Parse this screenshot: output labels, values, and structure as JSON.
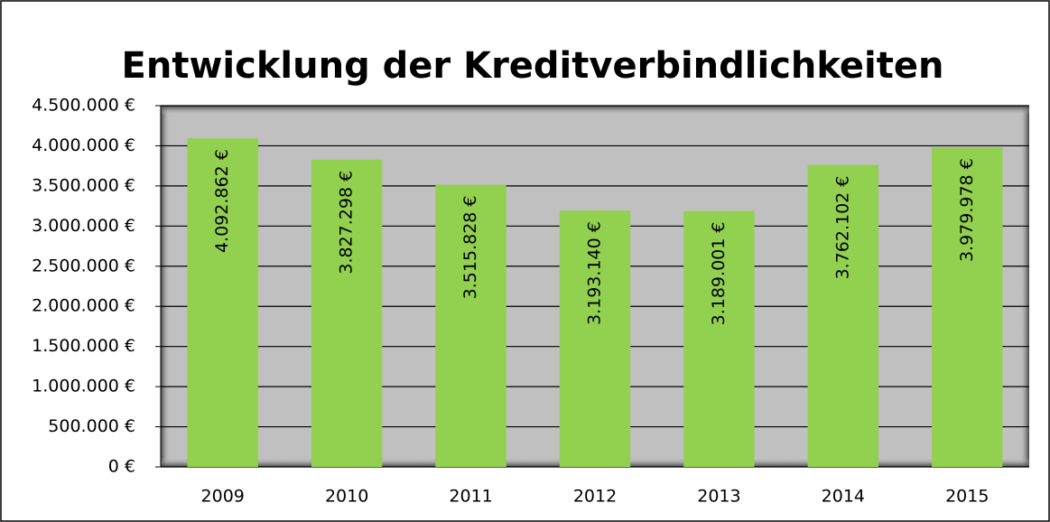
{
  "chart_data": {
    "type": "bar",
    "title": "Entwicklung der Kreditverbindlichkeiten",
    "categories": [
      "2009",
      "2010",
      "2011",
      "2012",
      "2013",
      "2014",
      "2015"
    ],
    "values": [
      4092862,
      3827298,
      3515828,
      3193140,
      3189001,
      3762102,
      3979978
    ],
    "value_labels": [
      "4.092.862 €",
      "3.827.298 €",
      "3.515.828 €",
      "3.193.140 €",
      "3.189.001 €",
      "3.762.102 €",
      "3.979.978 €"
    ],
    "color": "#92d050",
    "ylim": [
      0,
      4500000
    ],
    "yticks": [
      {
        "value": 0,
        "label": "0 €"
      },
      {
        "value": 500000,
        "label": "500.000 €"
      },
      {
        "value": 1000000,
        "label": "1.000.000 €"
      },
      {
        "value": 1500000,
        "label": "1.500.000 €"
      },
      {
        "value": 2000000,
        "label": "2.000.000 €"
      },
      {
        "value": 2500000,
        "label": "2.500.000 €"
      },
      {
        "value": 3000000,
        "label": "3.000.000 €"
      },
      {
        "value": 3500000,
        "label": "3.500.000 €"
      },
      {
        "value": 4000000,
        "label": "4.000.000 €"
      },
      {
        "value": 4500000,
        "label": "4.500.000 €"
      }
    ],
    "grid": true
  }
}
